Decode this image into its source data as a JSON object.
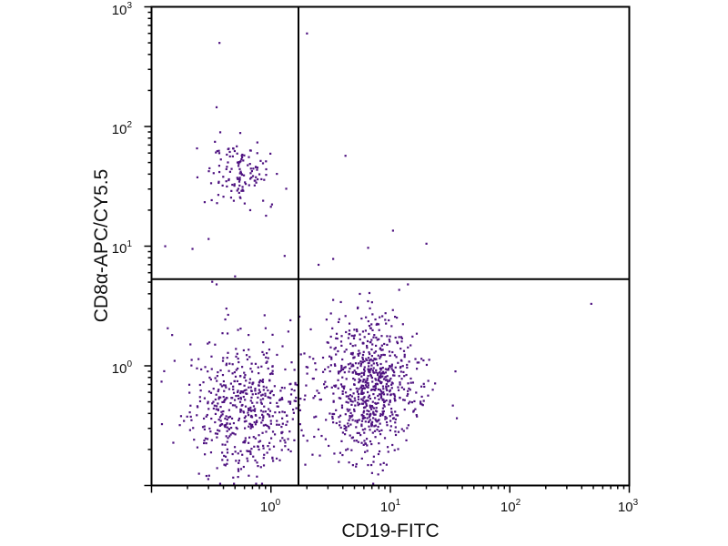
{
  "chart_data": {
    "type": "scatter",
    "title": "",
    "xlabel": "CD19-FITC",
    "ylabel": "CD8α-APC/CY5.5",
    "xscale": "log",
    "yscale": "log",
    "xlim": [
      0.1,
      1000
    ],
    "ylim": [
      0.1,
      1000
    ],
    "grid": false,
    "legend": "none",
    "x_ticks": [
      {
        "base": "10",
        "exp": "0",
        "value": 1
      },
      {
        "base": "10",
        "exp": "1",
        "value": 10
      },
      {
        "base": "10",
        "exp": "2",
        "value": 100
      },
      {
        "base": "10",
        "exp": "3",
        "value": 1000
      }
    ],
    "y_ticks": [
      {
        "base": "10",
        "exp": "0",
        "value": 1
      },
      {
        "base": "10",
        "exp": "1",
        "value": 10
      },
      {
        "base": "10",
        "exp": "2",
        "value": 100
      },
      {
        "base": "10",
        "exp": "3",
        "value": 1000
      }
    ],
    "quadrant_gates": {
      "x": 1.7,
      "y": 5.3
    },
    "point_color": "#4e1280",
    "populations": [
      {
        "name": "CD19- CD8- (lower-left)",
        "center": [
          0.6,
          0.45
        ],
        "log_sd": [
          0.24,
          0.28
        ],
        "count": 560,
        "seed": 11
      },
      {
        "name": "CD19+ CD8- (lower-right)",
        "center": [
          7.0,
          0.7
        ],
        "log_sd": [
          0.2,
          0.3
        ],
        "count": 760,
        "seed": 23
      },
      {
        "name": "CD19- CD8+ (upper-left)",
        "center": [
          0.55,
          40
        ],
        "log_sd": [
          0.14,
          0.14
        ],
        "count": 130,
        "seed": 37
      }
    ],
    "outliers": [
      [
        0.37,
        500
      ],
      [
        2.0,
        600
      ],
      [
        0.35,
        145
      ],
      [
        4.2,
        57
      ],
      [
        0.13,
        10
      ],
      [
        0.22,
        9.5
      ],
      [
        0.3,
        11.5
      ],
      [
        1.3,
        8.3
      ],
      [
        6.5,
        9.7
      ],
      [
        10.5,
        13.5
      ],
      [
        20,
        10.5
      ],
      [
        2.5,
        7
      ],
      [
        480,
        3.3
      ],
      [
        0.5,
        5.6
      ],
      [
        0.35,
        4.8
      ],
      [
        14,
        4.8
      ],
      [
        35,
        0.9
      ]
    ]
  }
}
